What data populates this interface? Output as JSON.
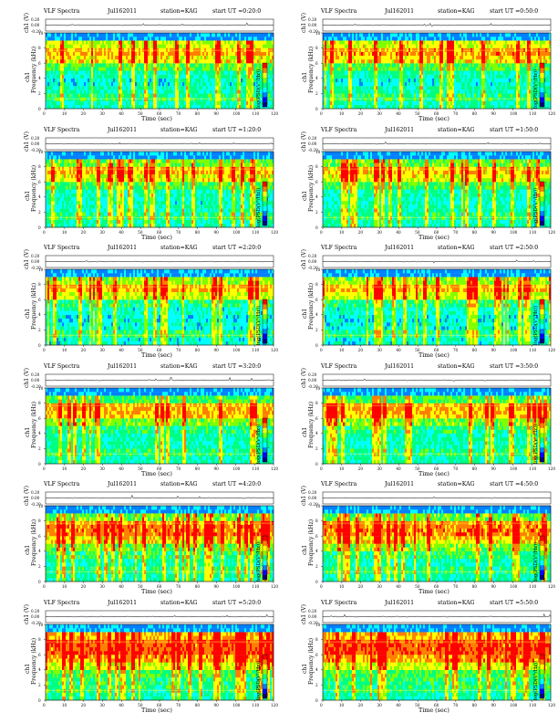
{
  "page_labels": {
    "title": "VLF Spectra",
    "station": "station=KAG",
    "xlabel": "Time (sec)",
    "ylabel_freq": "Frequency (kHz)",
    "ylabel_ch": "ch1",
    "ylabel_volt": "ch1 (V)",
    "colorbar_label": "log(PSD(V²/Hz))"
  },
  "panels": [
    {
      "date": "Jul162011",
      "start": "start UT =0:20:0"
    },
    {
      "date": "Jul162011",
      "start": "start UT =0:50:0"
    },
    {
      "date": "Jul162011",
      "start": "start UT =1:20:0"
    },
    {
      "date": "Jul162011",
      "start": "start UT =1:50:0"
    },
    {
      "date": "Jul162011",
      "start": "start UT =2:20:0"
    },
    {
      "date": "Jul162011",
      "start": "start UT =2:50:0"
    },
    {
      "date": "Jul162011",
      "start": "start UT =3:20:0"
    },
    {
      "date": "Jul162011",
      "start": "start UT =3:50:0"
    },
    {
      "date": "Jul162011",
      "start": "start UT =4:20:0"
    },
    {
      "date": "Jul162011",
      "start": "start UT =4:50:0"
    },
    {
      "date": "Jul162011",
      "start": "start UT =5:20:0"
    },
    {
      "date": "Jul162011",
      "start": "start UT =5:50:0"
    }
  ],
  "chart_data": {
    "type": "heatmap",
    "x_range": [
      0,
      120
    ],
    "x_ticks": [
      0,
      10,
      20,
      30,
      40,
      50,
      60,
      70,
      80,
      90,
      100,
      110,
      120
    ],
    "y_range_khz": [
      0,
      10
    ],
    "y_ticks_khz": [
      0,
      2,
      4,
      6,
      8,
      10
    ],
    "volt_range": [
      -0.2,
      0.2
    ],
    "volt_ticks": [
      "0.20",
      "0.00",
      "-0.20"
    ],
    "colorbar_ticks": [
      "-",
      "-",
      "-",
      "-"
    ],
    "colormap": [
      "#00007f",
      "#0000ff",
      "#0080ff",
      "#00ffff",
      "#00ff80",
      "#80ff00",
      "#ffff00",
      "#ff8000",
      "#ff0000"
    ],
    "series_note": "spectrogram intensity per 1 s time bin and frequency band",
    "intensity_profile": {
      "rows_khz": [
        0.5,
        1.5,
        2.5,
        3.5,
        4.5,
        5.5,
        6.5,
        7.5,
        8.5,
        9.5
      ],
      "panels": [
        [
          0.45,
          0.5,
          0.45,
          0.4,
          0.45,
          0.55,
          0.75,
          0.82,
          0.7,
          0.35
        ],
        [
          0.45,
          0.5,
          0.45,
          0.4,
          0.45,
          0.55,
          0.77,
          0.84,
          0.72,
          0.35
        ],
        [
          0.45,
          0.5,
          0.45,
          0.42,
          0.45,
          0.55,
          0.72,
          0.8,
          0.6,
          0.3
        ],
        [
          0.45,
          0.5,
          0.45,
          0.42,
          0.45,
          0.55,
          0.72,
          0.78,
          0.6,
          0.3
        ],
        [
          0.4,
          0.5,
          0.4,
          0.38,
          0.42,
          0.5,
          0.7,
          0.8,
          0.65,
          0.25
        ],
        [
          0.4,
          0.5,
          0.4,
          0.38,
          0.42,
          0.5,
          0.7,
          0.8,
          0.65,
          0.25
        ],
        [
          0.45,
          0.5,
          0.45,
          0.45,
          0.5,
          0.62,
          0.8,
          0.82,
          0.55,
          0.3
        ],
        [
          0.45,
          0.5,
          0.45,
          0.45,
          0.5,
          0.62,
          0.8,
          0.82,
          0.55,
          0.3
        ],
        [
          0.45,
          0.5,
          0.45,
          0.5,
          0.6,
          0.75,
          0.87,
          0.85,
          0.6,
          0.3
        ],
        [
          0.45,
          0.5,
          0.45,
          0.5,
          0.62,
          0.77,
          0.88,
          0.86,
          0.6,
          0.3
        ],
        [
          0.45,
          0.5,
          0.5,
          0.55,
          0.7,
          0.85,
          0.92,
          0.92,
          0.8,
          0.35
        ],
        [
          0.45,
          0.5,
          0.5,
          0.55,
          0.7,
          0.85,
          0.92,
          0.92,
          0.8,
          0.35
        ]
      ]
    }
  }
}
